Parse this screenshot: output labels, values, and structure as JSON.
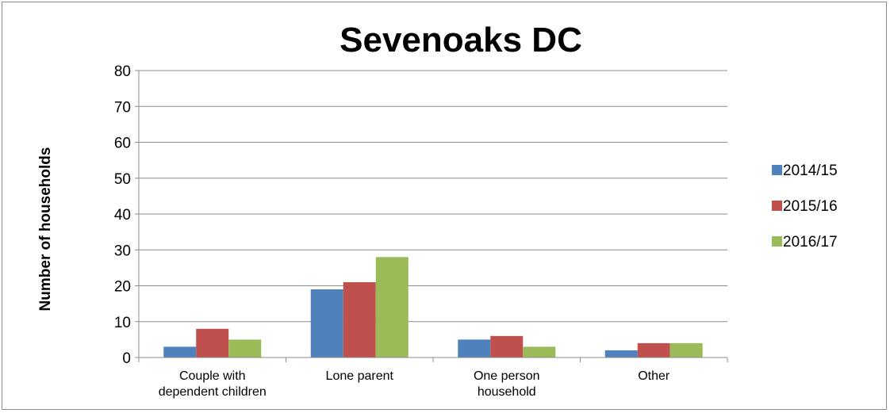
{
  "chart_data": {
    "type": "bar",
    "title": "Sevenoaks DC",
    "xlabel": "",
    "ylabel": "Number of households",
    "ylim": [
      0,
      80
    ],
    "yticks": [
      0,
      10,
      20,
      30,
      40,
      50,
      60,
      70,
      80
    ],
    "grid": true,
    "legend_position": "right",
    "categories": [
      [
        "Couple with",
        "dependent children"
      ],
      [
        "Lone parent"
      ],
      [
        "One person",
        "household"
      ],
      [
        "Other"
      ]
    ],
    "series": [
      {
        "name": "2014/15",
        "color": "#4f81bd",
        "values": [
          3,
          19,
          5,
          2
        ]
      },
      {
        "name": "2015/16",
        "color": "#c0504d",
        "values": [
          8,
          21,
          6,
          4
        ]
      },
      {
        "name": "2016/17",
        "color": "#9bbb59",
        "values": [
          5,
          28,
          3,
          4
        ]
      }
    ]
  }
}
